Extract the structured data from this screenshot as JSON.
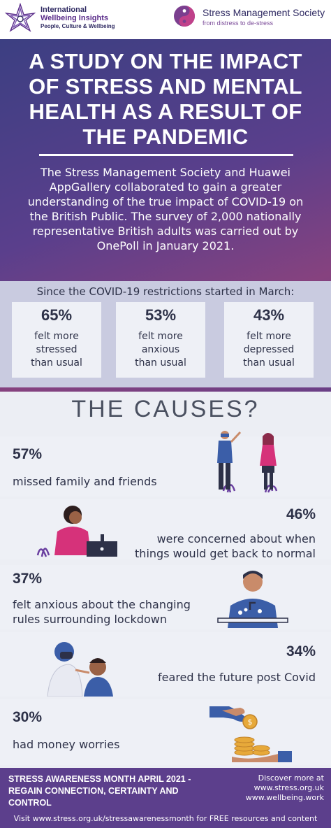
{
  "header": {
    "iwi": {
      "line1": "International",
      "line2": "Wellbeing Insights",
      "line3": "People, Culture & Wellbeing"
    },
    "sms": {
      "name": "Stress Management Society",
      "tagline": "from distress to de-stress"
    }
  },
  "hero": {
    "title_lines": [
      "A STUDY ON THE IMPACT",
      "OF STRESS AND MENTAL",
      "HEALTH AS A RESULT OF",
      "THE PANDEMIC"
    ],
    "intro_lines": [
      "The Stress Management Society and Huawei",
      "AppGallery collaborated to gain a greater",
      "understanding of the true impact of COVID-19 on",
      "the British Public. The survey of 2,000 nationally",
      "representative British adults was carried out by",
      "OnePoll in January 2021."
    ]
  },
  "stats": {
    "lead": "Since the COVID-19 restrictions started in March:",
    "cards": [
      {
        "pct": "65%",
        "lines": [
          "felt more",
          "stressed",
          "than usual"
        ]
      },
      {
        "pct": "53%",
        "lines": [
          "felt more",
          "anxious",
          "than usual"
        ]
      },
      {
        "pct": "43%",
        "lines": [
          "felt more",
          "depressed",
          "than usual"
        ]
      }
    ]
  },
  "causes": {
    "heading": "THE CAUSES?",
    "items": [
      {
        "pct": "57%",
        "lines": [
          "missed family and friends"
        ]
      },
      {
        "pct": "46%",
        "lines": [
          "were concerned about when",
          "things would get back to normal"
        ]
      },
      {
        "pct": "37%",
        "lines": [
          "felt anxious about the changing",
          "rules surrounding lockdown"
        ]
      },
      {
        "pct": "34%",
        "lines": [
          "feared the future post Covid"
        ]
      },
      {
        "pct": "30%",
        "lines": [
          "had money worries"
        ]
      }
    ]
  },
  "footer": {
    "left_lines": [
      "STRESS AWARENESS MONTH APRIL 2021 -",
      "REGAIN CONNECTION, CERTAINTY AND",
      "CONTROL"
    ],
    "right_lines": [
      "Discover more at",
      "www.stress.org.uk",
      "www.wellbeing.work"
    ],
    "bottom": "Visit www.stress.org.uk/stressawarenessmonth for FREE resources and content"
  },
  "colors": {
    "purple": "#5c3f8c",
    "navy": "#2d3148",
    "pink": "#d6327a",
    "band": "#c9cbe0"
  }
}
